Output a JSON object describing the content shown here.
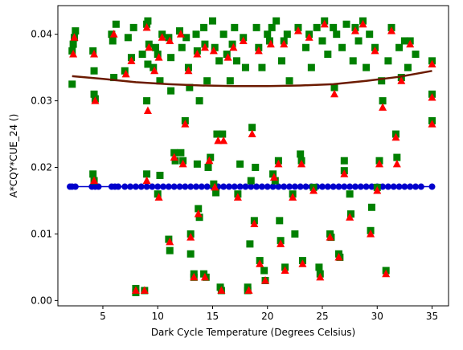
{
  "chart_data": {
    "type": "scatter",
    "title": "",
    "xlabel": "Dark Cycle Temperature (Degrees Celsius)",
    "ylabel": "A*CQY*CUE_24 ()",
    "xlim": [
      0.9,
      36.5
    ],
    "ylim": [
      -0.0008,
      0.0443
    ],
    "xticks": [
      5,
      10,
      15,
      20,
      25,
      30,
      35
    ],
    "yticks": [
      0.0,
      0.01,
      0.02,
      0.03,
      0.04
    ],
    "xtick_labels": [
      "5",
      "10",
      "15",
      "20",
      "25",
      "30",
      "35"
    ],
    "ytick_labels": [
      "0.00",
      "0.01",
      "0.02",
      "0.03",
      "0.04"
    ],
    "grid": false,
    "legend": "none",
    "colors": {
      "square_series": "#008000",
      "triangle_series": "#ff0000",
      "baseline_series": "#0000cc",
      "trend_line": "#6b1a00"
    },
    "series": [
      {
        "marker": "square",
        "color": "#008000",
        "points": [
          [
            2.2,
            0.0375
          ],
          [
            2.2,
            0.0325
          ],
          [
            2.3,
            0.0385
          ],
          [
            2.5,
            0.0405
          ],
          [
            2.4,
            0.0395
          ],
          [
            4.1,
            0.0375
          ],
          [
            4.2,
            0.0345
          ],
          [
            4.2,
            0.031
          ],
          [
            4.3,
            0.0303
          ],
          [
            4.1,
            0.019
          ],
          [
            4.2,
            0.018
          ],
          [
            5.8,
            0.04
          ],
          [
            5.9,
            0.039
          ],
          [
            6.2,
            0.0415
          ],
          [
            6.0,
            0.0335
          ],
          [
            7.0,
            0.0345
          ],
          [
            7.3,
            0.0395
          ],
          [
            7.6,
            0.0365
          ],
          [
            7.8,
            0.041
          ],
          [
            8.0,
            0.0018
          ],
          [
            8.0,
            0.0012
          ],
          [
            8.6,
            0.037
          ],
          [
            8.8,
            0.0015
          ],
          [
            9.0,
            0.0415
          ],
          [
            9.1,
            0.042
          ],
          [
            9.2,
            0.0385
          ],
          [
            9.1,
            0.0355
          ],
          [
            9.0,
            0.03
          ],
          [
            9.0,
            0.019
          ],
          [
            9.6,
            0.035
          ],
          [
            9.8,
            0.038
          ],
          [
            10.0,
            0.037
          ],
          [
            10.2,
            0.033
          ],
          [
            10.4,
            0.04
          ],
          [
            10.0,
            0.016
          ],
          [
            10.2,
            0.0188
          ],
          [
            11.0,
            0.0395
          ],
          [
            11.2,
            0.0365
          ],
          [
            11.2,
            0.0315
          ],
          [
            11.0,
            0.0092
          ],
          [
            11.1,
            0.0075
          ],
          [
            11.5,
            0.0222
          ],
          [
            11.6,
            0.021
          ],
          [
            12.0,
            0.0405
          ],
          [
            12.2,
            0.038
          ],
          [
            12.1,
            0.0222
          ],
          [
            12.3,
            0.021
          ],
          [
            12.5,
            0.027
          ],
          [
            12.6,
            0.0395
          ],
          [
            12.8,
            0.035
          ],
          [
            12.9,
            0.032
          ],
          [
            13.0,
            0.01
          ],
          [
            13.0,
            0.007
          ],
          [
            13.3,
            0.004
          ],
          [
            13.3,
            0.0035
          ],
          [
            13.5,
            0.04
          ],
          [
            13.6,
            0.0375
          ],
          [
            13.8,
            0.03
          ],
          [
            13.6,
            0.0205
          ],
          [
            13.7,
            0.0138
          ],
          [
            13.8,
            0.0125
          ],
          [
            14.2,
            0.041
          ],
          [
            14.3,
            0.0385
          ],
          [
            14.5,
            0.033
          ],
          [
            14.2,
            0.004
          ],
          [
            14.4,
            0.0035
          ],
          [
            14.6,
            0.02
          ],
          [
            14.8,
            0.0215
          ],
          [
            15.0,
            0.042
          ],
          [
            15.2,
            0.038
          ],
          [
            15.1,
            0.0175
          ],
          [
            15.3,
            0.0162
          ],
          [
            15.4,
            0.025
          ],
          [
            15.6,
            0.036
          ],
          [
            15.7,
            0.002
          ],
          [
            15.8,
            0.0015
          ],
          [
            15.9,
            0.025
          ],
          [
            16.0,
            0.04
          ],
          [
            16.3,
            0.037
          ],
          [
            16.6,
            0.033
          ],
          [
            16.8,
            0.0385
          ],
          [
            17.0,
            0.041
          ],
          [
            17.2,
            0.036
          ],
          [
            17.3,
            0.016
          ],
          [
            17.5,
            0.0205
          ],
          [
            17.8,
            0.0395
          ],
          [
            18.0,
            0.035
          ],
          [
            18.2,
            0.0015
          ],
          [
            18.2,
            0.002
          ],
          [
            18.4,
            0.0085
          ],
          [
            18.5,
            0.018
          ],
          [
            18.6,
            0.026
          ],
          [
            18.8,
            0.012
          ],
          [
            18.9,
            0.02
          ],
          [
            19.0,
            0.041
          ],
          [
            19.2,
            0.038
          ],
          [
            19.3,
            0.006
          ],
          [
            19.5,
            0.035
          ],
          [
            19.7,
            0.0045
          ],
          [
            19.8,
            0.003
          ],
          [
            20.0,
            0.04
          ],
          [
            20.2,
            0.039
          ],
          [
            20.4,
            0.041
          ],
          [
            20.5,
            0.019
          ],
          [
            20.7,
            0.018
          ],
          [
            20.8,
            0.042
          ],
          [
            21.0,
            0.021
          ],
          [
            21.1,
            0.012
          ],
          [
            21.2,
            0.009
          ],
          [
            21.3,
            0.036
          ],
          [
            21.5,
            0.039
          ],
          [
            21.6,
            0.005
          ],
          [
            21.8,
            0.04
          ],
          [
            22.0,
            0.033
          ],
          [
            22.3,
            0.016
          ],
          [
            22.5,
            0.01
          ],
          [
            22.8,
            0.041
          ],
          [
            23.0,
            0.022
          ],
          [
            23.1,
            0.021
          ],
          [
            23.2,
            0.006
          ],
          [
            23.5,
            0.038
          ],
          [
            23.8,
            0.04
          ],
          [
            24.0,
            0.035
          ],
          [
            24.2,
            0.017
          ],
          [
            24.5,
            0.041
          ],
          [
            24.7,
            0.005
          ],
          [
            24.8,
            0.004
          ],
          [
            25.0,
            0.039
          ],
          [
            25.2,
            0.042
          ],
          [
            25.5,
            0.037
          ],
          [
            25.7,
            0.01
          ],
          [
            25.8,
            0.0095
          ],
          [
            26.0,
            0.041
          ],
          [
            26.1,
            0.032
          ],
          [
            26.3,
            0.04
          ],
          [
            26.5,
            0.007
          ],
          [
            26.6,
            0.0065
          ],
          [
            26.8,
            0.038
          ],
          [
            27.0,
            0.021
          ],
          [
            27.0,
            0.0195
          ],
          [
            27.2,
            0.0415
          ],
          [
            27.5,
            0.016
          ],
          [
            27.6,
            0.013
          ],
          [
            27.8,
            0.036
          ],
          [
            28.0,
            0.041
          ],
          [
            28.3,
            0.039
          ],
          [
            28.7,
            0.042
          ],
          [
            29.0,
            0.035
          ],
          [
            29.3,
            0.04
          ],
          [
            29.4,
            0.0105
          ],
          [
            29.5,
            0.014
          ],
          [
            29.8,
            0.038
          ],
          [
            30.0,
            0.017
          ],
          [
            30.2,
            0.021
          ],
          [
            30.4,
            0.033
          ],
          [
            30.5,
            0.03
          ],
          [
            30.8,
            0.0045
          ],
          [
            31.0,
            0.036
          ],
          [
            31.3,
            0.041
          ],
          [
            31.7,
            0.025
          ],
          [
            31.8,
            0.0215
          ],
          [
            32.0,
            0.038
          ],
          [
            32.2,
            0.0335
          ],
          [
            32.5,
            0.039
          ],
          [
            32.8,
            0.035
          ],
          [
            33.0,
            0.039
          ],
          [
            33.5,
            0.037
          ],
          [
            35.0,
            0.036
          ],
          [
            35.0,
            0.031
          ],
          [
            35.0,
            0.027
          ]
        ]
      },
      {
        "marker": "triangle",
        "color": "#ff0000",
        "points": [
          [
            2.3,
            0.037
          ],
          [
            2.4,
            0.0395
          ],
          [
            4.2,
            0.037
          ],
          [
            4.3,
            0.03
          ],
          [
            4.2,
            0.018
          ],
          [
            6.0,
            0.04
          ],
          [
            7.1,
            0.034
          ],
          [
            7.6,
            0.036
          ],
          [
            8.0,
            0.0015
          ],
          [
            8.8,
            0.0015
          ],
          [
            9.0,
            0.041
          ],
          [
            9.2,
            0.038
          ],
          [
            9.1,
            0.0285
          ],
          [
            9.0,
            0.018
          ],
          [
            9.7,
            0.0345
          ],
          [
            10.1,
            0.0365
          ],
          [
            10.4,
            0.0395
          ],
          [
            10.1,
            0.0155
          ],
          [
            11.1,
            0.039
          ],
          [
            11.1,
            0.0088
          ],
          [
            11.5,
            0.0215
          ],
          [
            12.1,
            0.04
          ],
          [
            12.3,
            0.0205
          ],
          [
            12.5,
            0.0265
          ],
          [
            12.8,
            0.0345
          ],
          [
            13.0,
            0.0095
          ],
          [
            13.3,
            0.0035
          ],
          [
            13.6,
            0.037
          ],
          [
            13.7,
            0.013
          ],
          [
            14.3,
            0.038
          ],
          [
            14.3,
            0.0035
          ],
          [
            14.7,
            0.021
          ],
          [
            15.1,
            0.0375
          ],
          [
            15.2,
            0.017
          ],
          [
            15.5,
            0.024
          ],
          [
            15.8,
            0.0015
          ],
          [
            16.0,
            0.024
          ],
          [
            16.4,
            0.0365
          ],
          [
            16.9,
            0.038
          ],
          [
            17.3,
            0.0155
          ],
          [
            17.8,
            0.039
          ],
          [
            18.3,
            0.0015
          ],
          [
            18.6,
            0.025
          ],
          [
            18.8,
            0.0115
          ],
          [
            19.2,
            0.0375
          ],
          [
            19.3,
            0.0055
          ],
          [
            19.8,
            0.003
          ],
          [
            20.3,
            0.0385
          ],
          [
            20.6,
            0.0185
          ],
          [
            21.0,
            0.0205
          ],
          [
            21.2,
            0.0085
          ],
          [
            21.5,
            0.0385
          ],
          [
            21.6,
            0.0045
          ],
          [
            22.3,
            0.0155
          ],
          [
            22.8,
            0.0405
          ],
          [
            23.1,
            0.0205
          ],
          [
            23.2,
            0.0055
          ],
          [
            23.8,
            0.0395
          ],
          [
            24.2,
            0.0165
          ],
          [
            24.8,
            0.0035
          ],
          [
            25.2,
            0.0415
          ],
          [
            25.7,
            0.0095
          ],
          [
            26.1,
            0.031
          ],
          [
            26.5,
            0.0065
          ],
          [
            27.0,
            0.019
          ],
          [
            27.5,
            0.0125
          ],
          [
            28.0,
            0.0405
          ],
          [
            28.7,
            0.0415
          ],
          [
            29.4,
            0.01
          ],
          [
            29.8,
            0.0375
          ],
          [
            30.0,
            0.0165
          ],
          [
            30.2,
            0.0205
          ],
          [
            30.5,
            0.029
          ],
          [
            30.8,
            0.004
          ],
          [
            31.3,
            0.0405
          ],
          [
            31.7,
            0.0245
          ],
          [
            31.8,
            0.0205
          ],
          [
            32.2,
            0.033
          ],
          [
            33.0,
            0.0385
          ],
          [
            35.0,
            0.0355
          ],
          [
            35.0,
            0.0305
          ],
          [
            35.0,
            0.0265
          ]
        ]
      },
      {
        "marker": "circle",
        "color": "#0000cc",
        "y": 0.0171,
        "x": [
          2.0,
          2.2,
          2.5,
          4.0,
          4.3,
          4.6,
          5.8,
          6.1,
          6.4,
          7.0,
          7.5,
          8.0,
          8.5,
          9.0,
          9.5,
          10.0,
          10.5,
          11.0,
          11.5,
          12.0,
          12.5,
          13.0,
          13.5,
          14.0,
          14.5,
          15.0,
          15.5,
          16.0,
          16.5,
          17.0,
          17.5,
          18.0,
          18.5,
          19.0,
          19.5,
          20.0,
          20.5,
          21.0,
          21.5,
          22.0,
          22.5,
          23.0,
          23.5,
          24.0,
          24.5,
          25.0,
          25.5,
          26.0,
          26.5,
          27.0,
          27.5,
          28.0,
          28.5,
          29.0,
          29.5,
          30.0,
          30.5,
          31.0,
          31.5,
          32.0,
          32.5,
          33.0,
          33.5,
          34.0,
          35.0
        ]
      },
      {
        "marker": "line",
        "color": "#6b1a00",
        "points": [
          [
            2.2,
            0.0337
          ],
          [
            5.0,
            0.0333
          ],
          [
            8.0,
            0.0328
          ],
          [
            11.0,
            0.0325
          ],
          [
            14.0,
            0.0323
          ],
          [
            17.0,
            0.0322
          ],
          [
            20.0,
            0.0322
          ],
          [
            23.0,
            0.0323
          ],
          [
            26.0,
            0.0325
          ],
          [
            29.0,
            0.033
          ],
          [
            32.0,
            0.0336
          ],
          [
            35.0,
            0.0345
          ]
        ]
      }
    ]
  }
}
